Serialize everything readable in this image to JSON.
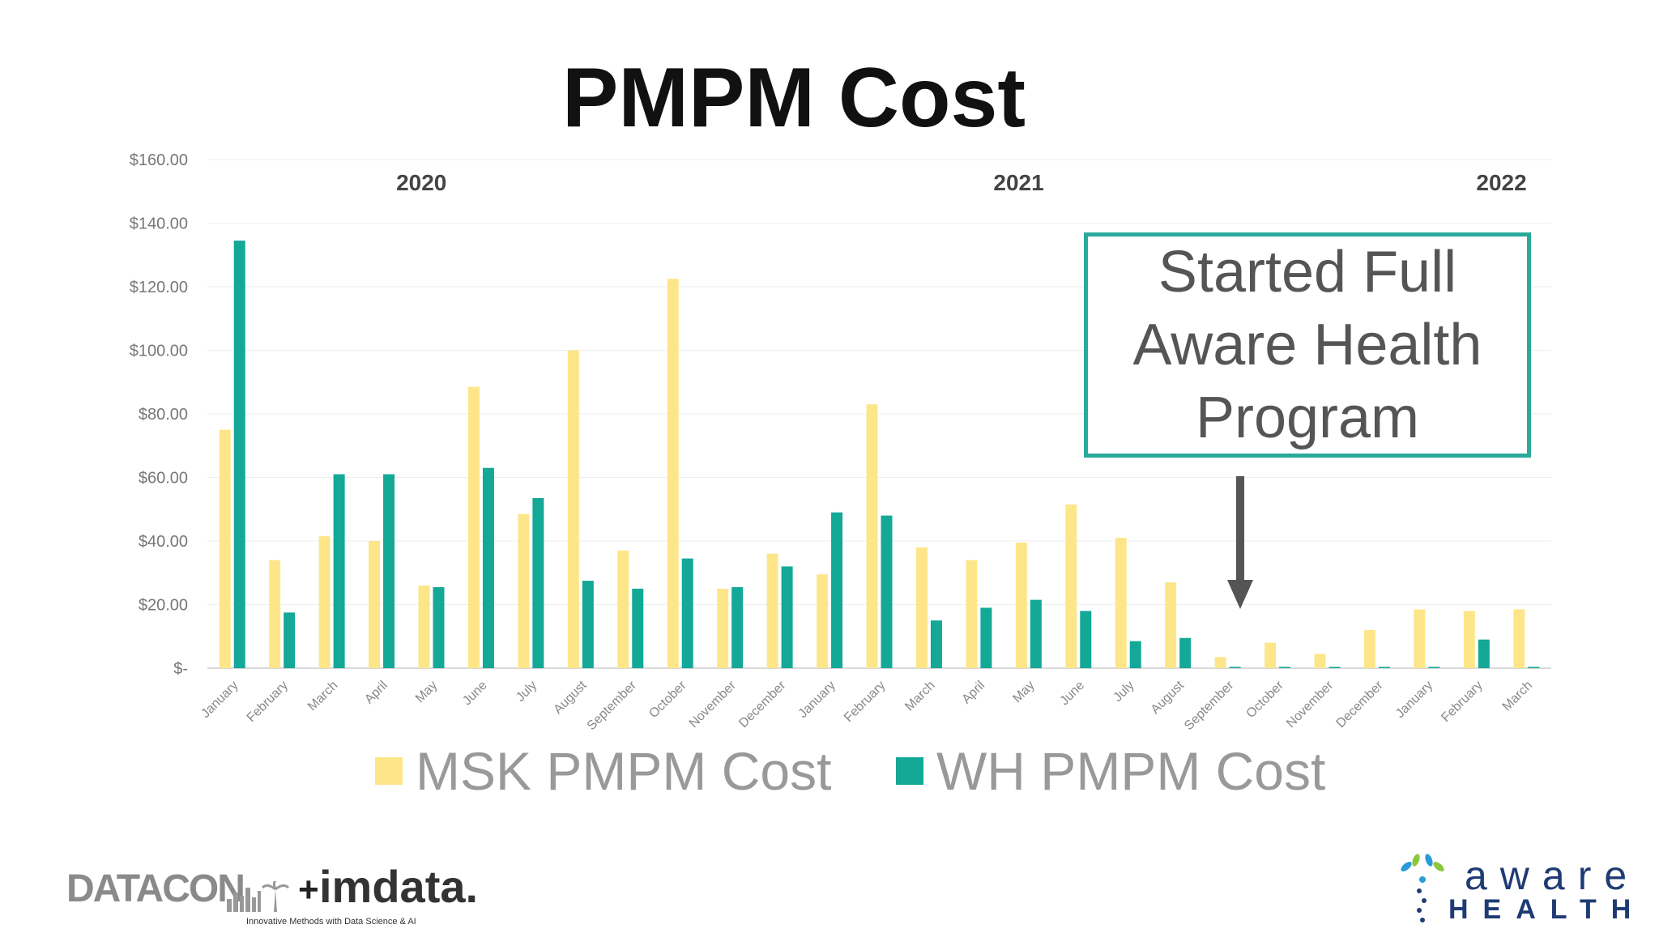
{
  "title": "PMPM Cost",
  "chart_data": {
    "type": "bar",
    "title": "PMPM Cost",
    "xlabel": "",
    "ylabel": "",
    "ylim": [
      0,
      160
    ],
    "yticks": [
      "$-",
      "$20.00",
      "$40.00",
      "$60.00",
      "$80.00",
      "$100.00",
      "$120.00",
      "$140.00",
      "$160.00"
    ],
    "year_labels": [
      {
        "label": "2020",
        "center_index": 3.8
      },
      {
        "label": "2021",
        "center_index": 15.8
      },
      {
        "label": "2022",
        "center_index": 25.5
      }
    ],
    "categories": [
      "January",
      "February",
      "March",
      "April",
      "May",
      "June",
      "July",
      "August",
      "September",
      "October",
      "November",
      "December",
      "January",
      "February",
      "March",
      "April",
      "May",
      "June",
      "July",
      "August",
      "September",
      "October",
      "November",
      "December",
      "January",
      "February",
      "March"
    ],
    "series": [
      {
        "name": "MSK PMPM Cost",
        "color": "#fde68a",
        "values": [
          75,
          34,
          41.5,
          40,
          26,
          88.5,
          48.5,
          100,
          37,
          122.5,
          25,
          36,
          29.5,
          83,
          38,
          34,
          39.5,
          51.5,
          41,
          27,
          3.5,
          8,
          4.5,
          12,
          18.5,
          18,
          18.5
        ]
      },
      {
        "name": "WH PMPM Cost",
        "color": "#14a897",
        "values": [
          134.5,
          17.5,
          61,
          61,
          25.5,
          63,
          53.5,
          27.5,
          25,
          34.5,
          25.5,
          32,
          49,
          48,
          15,
          19,
          21.5,
          18,
          8.5,
          9.5,
          0.4,
          0.4,
          0.4,
          0.4,
          0.4,
          9,
          0.4
        ]
      }
    ],
    "grid": true,
    "legend": "bottom"
  },
  "callout": {
    "lines": [
      "Started Full",
      "Aware Health",
      "Program"
    ],
    "border_color": "#2aa99b"
  },
  "logos": {
    "left": {
      "datacon": "DATACON",
      "plus": "+",
      "imdata": "imdata.",
      "tagline": "Innovative Methods with Data Science & AI"
    },
    "right": {
      "word": "aware",
      "sub": "HEALTH"
    }
  }
}
